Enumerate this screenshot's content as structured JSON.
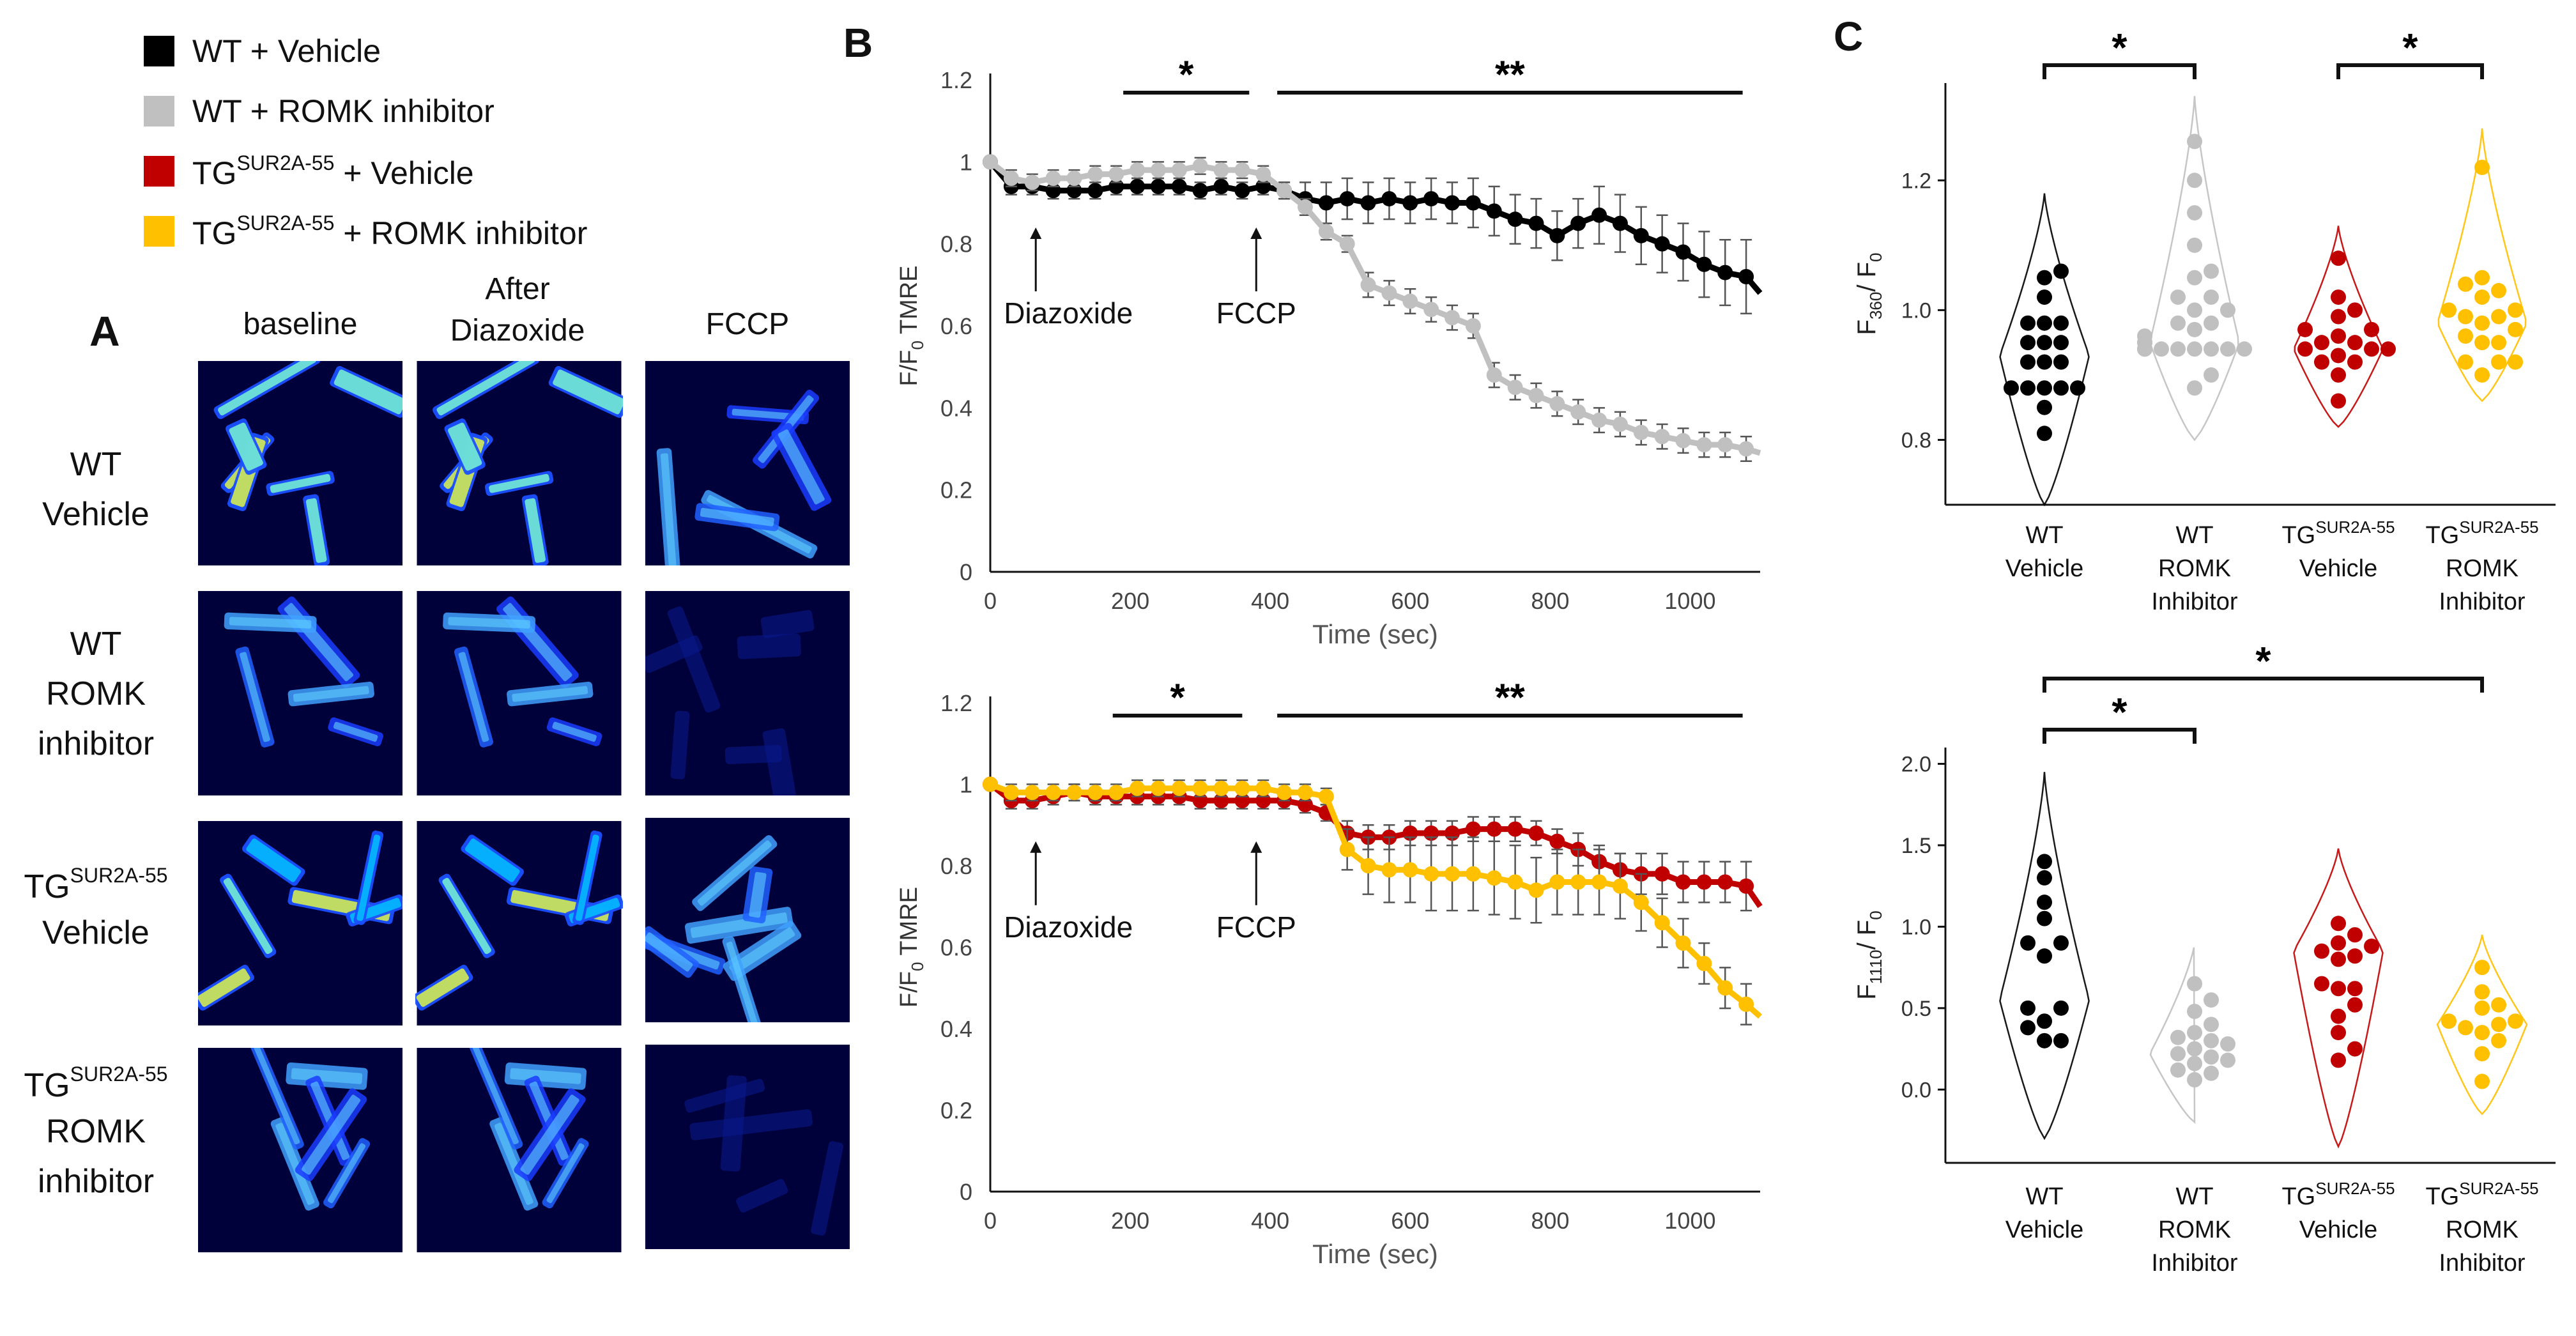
{
  "colors": {
    "wt_vehicle": "#000000",
    "wt_romk": "#c0c0c0",
    "tg_vehicle": "#c00000",
    "tg_romk": "#ffc000",
    "micrograph_bg": "#00003a",
    "errorbar": "#555555"
  },
  "legend": [
    {
      "main": "WT + Vehicle",
      "sup": "",
      "tail": "",
      "color": "#000000"
    },
    {
      "main": "WT + ROMK inhibitor",
      "sup": "",
      "tail": "",
      "color": "#c0c0c0"
    },
    {
      "main": "TG",
      "sup": "SUR2A-55",
      "tail": " + Vehicle",
      "color": "#c00000"
    },
    {
      "main": "TG",
      "sup": "SUR2A-55",
      "tail": " + ROMK inhibitor",
      "color": "#ffc000"
    }
  ],
  "panelA": {
    "label": "A",
    "columns": [
      {
        "line1": "baseline",
        "line2": ""
      },
      {
        "line1": "After",
        "line2": "Diazoxide"
      },
      {
        "line1": "FCCP",
        "line2": ""
      }
    ],
    "rows": [
      {
        "lines": [
          {
            "main": "WT",
            "sup": ""
          },
          {
            "main": "Vehicle",
            "sup": ""
          }
        ]
      },
      {
        "lines": [
          {
            "main": "WT",
            "sup": ""
          },
          {
            "main": "ROMK",
            "sup": ""
          },
          {
            "main": "inhibitor",
            "sup": ""
          }
        ]
      },
      {
        "lines": [
          {
            "main": "TG",
            "sup": "SUR2A-55"
          },
          {
            "main": "Vehicle",
            "sup": ""
          }
        ]
      },
      {
        "lines": [
          {
            "main": "TG",
            "sup": "SUR2A-55"
          },
          {
            "main": "ROMK",
            "sup": ""
          },
          {
            "main": "inhibitor",
            "sup": ""
          }
        ]
      }
    ]
  },
  "panelB": {
    "label": "B"
  },
  "panelC": {
    "label": "C"
  },
  "chart_data": [
    {
      "type": "line",
      "panel": "B-top",
      "ylabel": "F/F0 TMRE",
      "ylabel_parts": {
        "pre": "F/F",
        "sub": "0",
        "post": " TMRE"
      },
      "xlabel": "Time (sec)",
      "xlim": [
        0,
        1100
      ],
      "ylim": [
        0,
        1.2
      ],
      "xticks": [
        "0",
        "200",
        "400",
        "600",
        "800",
        "1000"
      ],
      "yticks": [
        "0",
        "0.2",
        "0.4",
        "0.6",
        "0.8",
        "1",
        "1.2"
      ],
      "annotations": [
        {
          "text": "Diazoxide",
          "x": 65,
          "arrow_to_y": 0.84
        },
        {
          "text": "FCCP",
          "x": 380,
          "arrow_to_y": 0.84
        }
      ],
      "significance": [
        {
          "x1": 190,
          "x2": 370,
          "label": "*"
        },
        {
          "x1": 410,
          "x2": 1075,
          "label": "**"
        }
      ],
      "series": [
        {
          "name": "WT + Vehicle",
          "color": "#000000",
          "x": [
            0,
            30,
            60,
            90,
            120,
            150,
            180,
            210,
            240,
            270,
            300,
            330,
            360,
            390,
            420,
            450,
            480,
            510,
            540,
            570,
            600,
            630,
            660,
            690,
            720,
            750,
            780,
            810,
            840,
            870,
            900,
            930,
            960,
            990,
            1020,
            1050,
            1080,
            1100
          ],
          "y": [
            1.0,
            0.94,
            0.94,
            0.93,
            0.93,
            0.93,
            0.94,
            0.94,
            0.94,
            0.94,
            0.93,
            0.94,
            0.93,
            0.94,
            0.93,
            0.91,
            0.9,
            0.91,
            0.9,
            0.91,
            0.9,
            0.91,
            0.9,
            0.9,
            0.88,
            0.86,
            0.85,
            0.82,
            0.85,
            0.87,
            0.85,
            0.82,
            0.8,
            0.78,
            0.75,
            0.73,
            0.72,
            0.68
          ],
          "err": [
            0,
            0.02,
            0.02,
            0.02,
            0.02,
            0.02,
            0.02,
            0.02,
            0.02,
            0.02,
            0.02,
            0.02,
            0.02,
            0.02,
            0.02,
            0.04,
            0.05,
            0.05,
            0.05,
            0.05,
            0.05,
            0.05,
            0.05,
            0.06,
            0.06,
            0.06,
            0.06,
            0.06,
            0.06,
            0.07,
            0.07,
            0.07,
            0.07,
            0.07,
            0.08,
            0.08,
            0.09,
            0
          ]
        },
        {
          "name": "WT + ROMK inhibitor",
          "color": "#c0c0c0",
          "x": [
            0,
            30,
            60,
            90,
            120,
            150,
            180,
            210,
            240,
            270,
            300,
            330,
            360,
            390,
            420,
            450,
            480,
            510,
            540,
            570,
            600,
            630,
            660,
            690,
            720,
            750,
            780,
            810,
            840,
            870,
            900,
            930,
            960,
            990,
            1020,
            1050,
            1080,
            1100
          ],
          "y": [
            1.0,
            0.96,
            0.95,
            0.96,
            0.96,
            0.97,
            0.97,
            0.98,
            0.98,
            0.98,
            0.99,
            0.98,
            0.98,
            0.97,
            0.93,
            0.89,
            0.83,
            0.8,
            0.7,
            0.68,
            0.66,
            0.64,
            0.62,
            0.6,
            0.48,
            0.45,
            0.43,
            0.41,
            0.39,
            0.37,
            0.36,
            0.34,
            0.33,
            0.32,
            0.31,
            0.31,
            0.3,
            0.29
          ],
          "err": [
            0,
            0.02,
            0.02,
            0.02,
            0.02,
            0.02,
            0.02,
            0.02,
            0.02,
            0.02,
            0.02,
            0.02,
            0.02,
            0.02,
            0.02,
            0.02,
            0.02,
            0.02,
            0.03,
            0.03,
            0.03,
            0.03,
            0.03,
            0.03,
            0.03,
            0.03,
            0.03,
            0.03,
            0.03,
            0.03,
            0.03,
            0.03,
            0.03,
            0.03,
            0.03,
            0.03,
            0.03,
            0
          ]
        }
      ]
    },
    {
      "type": "line",
      "panel": "B-bottom",
      "ylabel": "F/F0 TMRE",
      "ylabel_parts": {
        "pre": "F/F",
        "sub": "0",
        "post": " TMRE"
      },
      "xlabel": "Time (sec)",
      "xlim": [
        0,
        1100
      ],
      "ylim": [
        0,
        1.2
      ],
      "xticks": [
        "0",
        "200",
        "400",
        "600",
        "800",
        "1000"
      ],
      "yticks": [
        "0",
        "0.2",
        "0.4",
        "0.6",
        "0.8",
        "1",
        "1.2"
      ],
      "annotations": [
        {
          "text": "Diazoxide",
          "x": 65,
          "arrow_to_y": 0.86
        },
        {
          "text": "FCCP",
          "x": 380,
          "arrow_to_y": 0.86
        }
      ],
      "significance": [
        {
          "x1": 175,
          "x2": 360,
          "label": "*"
        },
        {
          "x1": 410,
          "x2": 1075,
          "label": "**"
        }
      ],
      "series": [
        {
          "name": "TGSUR2A-55 + Vehicle",
          "color": "#c00000",
          "x": [
            0,
            30,
            60,
            90,
            120,
            150,
            180,
            210,
            240,
            270,
            300,
            330,
            360,
            390,
            420,
            450,
            480,
            510,
            540,
            570,
            600,
            630,
            660,
            690,
            720,
            750,
            780,
            810,
            840,
            870,
            900,
            930,
            960,
            990,
            1020,
            1050,
            1080,
            1100
          ],
          "y": [
            1.0,
            0.96,
            0.96,
            0.97,
            0.98,
            0.97,
            0.97,
            0.97,
            0.97,
            0.97,
            0.96,
            0.96,
            0.96,
            0.96,
            0.96,
            0.95,
            0.93,
            0.88,
            0.87,
            0.87,
            0.88,
            0.88,
            0.88,
            0.89,
            0.89,
            0.89,
            0.88,
            0.86,
            0.84,
            0.81,
            0.79,
            0.78,
            0.78,
            0.76,
            0.76,
            0.76,
            0.75,
            0.7
          ],
          "err": [
            0,
            0.02,
            0.02,
            0.02,
            0.02,
            0.02,
            0.02,
            0.02,
            0.02,
            0.02,
            0.02,
            0.02,
            0.02,
            0.02,
            0.02,
            0.02,
            0.02,
            0.03,
            0.03,
            0.03,
            0.03,
            0.03,
            0.03,
            0.03,
            0.03,
            0.03,
            0.03,
            0.03,
            0.04,
            0.04,
            0.04,
            0.05,
            0.05,
            0.05,
            0.05,
            0.05,
            0.06,
            0
          ]
        },
        {
          "name": "TGSUR2A-55 + ROMK inhibitor",
          "color": "#ffc000",
          "x": [
            0,
            30,
            60,
            90,
            120,
            150,
            180,
            210,
            240,
            270,
            300,
            330,
            360,
            390,
            420,
            450,
            480,
            510,
            540,
            570,
            600,
            630,
            660,
            690,
            720,
            750,
            780,
            810,
            840,
            870,
            900,
            930,
            960,
            990,
            1020,
            1050,
            1080,
            1100
          ],
          "y": [
            1.0,
            0.98,
            0.98,
            0.98,
            0.98,
            0.98,
            0.98,
            0.99,
            0.99,
            0.99,
            0.99,
            0.99,
            0.99,
            0.99,
            0.98,
            0.98,
            0.97,
            0.84,
            0.8,
            0.79,
            0.79,
            0.78,
            0.78,
            0.78,
            0.77,
            0.76,
            0.74,
            0.76,
            0.76,
            0.76,
            0.75,
            0.71,
            0.66,
            0.61,
            0.56,
            0.5,
            0.46,
            0.43
          ],
          "err": [
            0,
            0.02,
            0.02,
            0.02,
            0.02,
            0.02,
            0.02,
            0.02,
            0.02,
            0.02,
            0.02,
            0.02,
            0.02,
            0.02,
            0.02,
            0.02,
            0.02,
            0.05,
            0.07,
            0.08,
            0.08,
            0.09,
            0.09,
            0.09,
            0.09,
            0.09,
            0.08,
            0.08,
            0.08,
            0.08,
            0.08,
            0.07,
            0.06,
            0.06,
            0.05,
            0.05,
            0.05,
            0
          ]
        }
      ]
    },
    {
      "type": "scatter",
      "panel": "C-top",
      "subtype": "violin",
      "ylabel": "F360/F0",
      "ylabel_parts": {
        "a": "F",
        "a_sub": "360",
        "b": "/ F",
        "b_sub": "0"
      },
      "ylim": [
        0.7,
        1.35
      ],
      "yticks": [
        0.8,
        1.0,
        1.2
      ],
      "ytick_labels": [
        "0.8",
        "1.0",
        "1.2"
      ],
      "groups": [
        {
          "line1": "WT",
          "line1_sup": "",
          "line2": "Vehicle",
          "line3": "",
          "color": "#000000",
          "points": [
            0.81,
            0.85,
            0.88,
            0.88,
            0.88,
            0.88,
            0.88,
            0.92,
            0.92,
            0.92,
            0.95,
            0.95,
            0.95,
            0.98,
            0.98,
            0.98,
            1.02,
            1.05,
            1.06
          ],
          "violin": {
            "min": 0.7,
            "max": 1.18,
            "mode": 0.93
          }
        },
        {
          "line1": "WT",
          "line1_sup": "",
          "line2": "ROMK",
          "line3": "Inhibitor",
          "color": "#c0c0c0",
          "points": [
            0.88,
            0.9,
            0.94,
            0.94,
            0.94,
            0.94,
            0.94,
            0.94,
            0.94,
            0.94,
            0.94,
            0.95,
            0.95,
            0.96,
            0.97,
            0.98,
            0.98,
            1.0,
            1.0,
            1.02,
            1.02,
            1.05,
            1.06,
            1.1,
            1.15,
            1.2,
            1.26
          ],
          "violin": {
            "min": 0.8,
            "max": 1.33,
            "mode": 0.95
          }
        },
        {
          "line1": "TG",
          "line1_sup": "SUR2A-55",
          "line2": "Vehicle",
          "line3": "",
          "color": "#c00000",
          "points": [
            0.86,
            0.9,
            0.92,
            0.92,
            0.93,
            0.94,
            0.94,
            0.94,
            0.95,
            0.95,
            0.96,
            0.97,
            0.97,
            0.99,
            1.0,
            1.02,
            1.08
          ],
          "violin": {
            "min": 0.82,
            "max": 1.13,
            "mode": 0.94
          }
        },
        {
          "line1": "TG",
          "line1_sup": "SUR2A-55",
          "line2": "ROMK",
          "line3": "Inhibitor",
          "color": "#ffc000",
          "points": [
            0.9,
            0.92,
            0.92,
            0.92,
            0.95,
            0.95,
            0.96,
            0.97,
            0.98,
            0.99,
            0.99,
            1.0,
            1.0,
            1.02,
            1.03,
            1.04,
            1.05,
            1.22
          ],
          "violin": {
            "min": 0.86,
            "max": 1.28,
            "mode": 0.98
          }
        }
      ],
      "significance": [
        {
          "g1": 0,
          "g2": 1,
          "label": "*",
          "level": 0
        },
        {
          "g1": 2,
          "g2": 3,
          "label": "*",
          "level": 0
        }
      ]
    },
    {
      "type": "scatter",
      "panel": "C-bottom",
      "subtype": "violin",
      "ylabel": "F1110/F0",
      "ylabel_parts": {
        "a": "F",
        "a_sub": "1110",
        "b": "/ F",
        "b_sub": "0"
      },
      "ylim": [
        -0.45,
        2.1
      ],
      "yticks": [
        0,
        0.5,
        1.0,
        1.5,
        2.0
      ],
      "ytick_labels": [
        "0.0",
        "0.5",
        "1.0",
        "1.5",
        "2.0"
      ],
      "groups": [
        {
          "line1": "WT",
          "line1_sup": "",
          "line2": "Vehicle",
          "line3": "",
          "color": "#000000",
          "points": [
            0.3,
            0.3,
            0.38,
            0.42,
            0.5,
            0.5,
            0.82,
            0.9,
            0.9,
            1.05,
            1.15,
            1.3,
            1.4
          ],
          "violin": {
            "min": -0.3,
            "max": 1.95,
            "mode": 0.55
          }
        },
        {
          "line1": "WT",
          "line1_sup": "",
          "line2": "ROMK",
          "line3": "Inhibitor",
          "color": "#c0c0c0",
          "points": [
            0.06,
            0.1,
            0.12,
            0.16,
            0.18,
            0.2,
            0.22,
            0.25,
            0.28,
            0.3,
            0.32,
            0.35,
            0.4,
            0.48,
            0.55,
            0.65
          ],
          "violin": {
            "min": -0.2,
            "max": 0.9,
            "mode": 0.22
          }
        },
        {
          "line1": "TG",
          "line1_sup": "SUR2A-55",
          "line2": "Vehicle",
          "line3": "",
          "color": "#c00000",
          "points": [
            0.18,
            0.25,
            0.35,
            0.45,
            0.52,
            0.62,
            0.62,
            0.65,
            0.8,
            0.82,
            0.85,
            0.88,
            0.9,
            0.95,
            1.02
          ],
          "violin": {
            "min": -0.35,
            "max": 1.48,
            "mode": 0.85
          }
        },
        {
          "line1": "TG",
          "line1_sup": "SUR2A-55",
          "line2": "ROMK",
          "line3": "Inhibitor",
          "color": "#ffc000",
          "points": [
            0.05,
            0.22,
            0.3,
            0.35,
            0.38,
            0.4,
            0.42,
            0.42,
            0.5,
            0.52,
            0.6,
            0.75
          ],
          "violin": {
            "min": -0.15,
            "max": 0.95,
            "mode": 0.4
          }
        }
      ],
      "significance": [
        {
          "g1": 0,
          "g2": 1,
          "label": "*",
          "level": 0
        },
        {
          "g1": 0,
          "g2": 3,
          "label": "*",
          "level": 1
        }
      ]
    }
  ]
}
